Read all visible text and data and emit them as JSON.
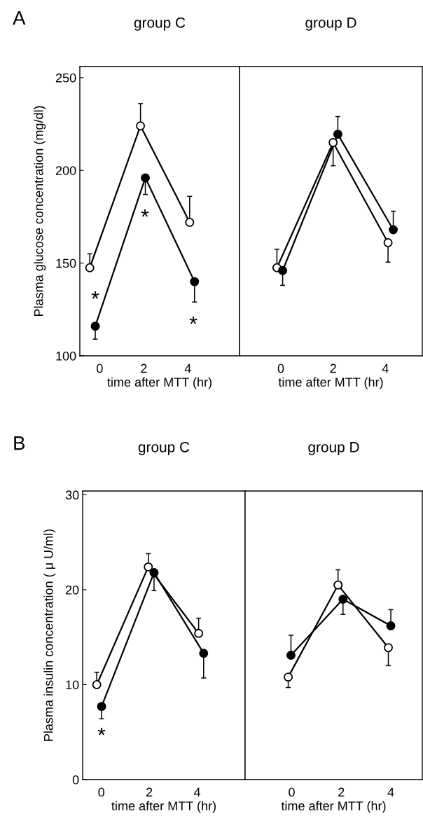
{
  "chart_data": [
    {
      "type": "line",
      "title": "group C",
      "ylabel": "Plasma glucose concentration (mg/dl)",
      "xlabel": "time after MTT (hr)",
      "xlim": [
        -0.9,
        6.34
      ],
      "xticks": [
        0,
        2,
        4
      ],
      "ylim": [
        100,
        256
      ],
      "yticks": [
        100,
        150,
        200,
        250
      ],
      "marker": "circle",
      "grid": false,
      "series": [
        {
          "color": "#000000",
          "colors": [
            "#ffffff",
            "#ffffff",
            "#ffffff"
          ],
          "x": [
            -0.45,
            1.85,
            4.08
          ],
          "values": [
            147.5,
            224,
            172
          ],
          "errors": [
            [
              147.5,
              155
            ],
            [
              224,
              236
            ],
            [
              172,
              186
            ]
          ]
        },
        {
          "color": "#000000",
          "colors": [
            "#000000",
            "#000000",
            "#000000"
          ],
          "x": [
            -0.2,
            2.07,
            4.3
          ],
          "values": [
            116,
            196,
            140
          ],
          "errors": [
            [
              109,
              116
            ],
            [
              187,
              196
            ],
            [
              129,
              140
            ]
          ]
        }
      ],
      "annotations": [
        "A",
        "*",
        "*",
        "*"
      ]
    },
    {
      "type": "line",
      "title": "group D",
      "xlabel": "time after MTT (hr)",
      "xlim": [
        -1.58,
        5.41
      ],
      "xticks": [
        0,
        2,
        4
      ],
      "ylim": [
        100,
        256
      ],
      "yticks": [
        100,
        150,
        200,
        250
      ],
      "tick_labels": "x",
      "marker": "circle",
      "grid": false,
      "series": [
        {
          "color": "#000000",
          "colors": [
            "#ffffff",
            "#ffffff",
            "#ffffff"
          ],
          "x": [
            -0.15,
            2.0,
            4.1
          ],
          "values": [
            147.5,
            215,
            161
          ],
          "errors": [
            [
              147.5,
              157.5
            ],
            [
              202.5,
              215
            ],
            [
              150.5,
              161
            ]
          ]
        },
        {
          "color": "#000000",
          "colors": [
            "#000000",
            "#000000",
            "#000000"
          ],
          "x": [
            0.07,
            2.18,
            4.3
          ],
          "values": [
            146,
            219.5,
            168
          ],
          "errors": [
            [
              138,
              146
            ],
            [
              219.5,
              229
            ],
            [
              168,
              178
            ]
          ]
        }
      ]
    },
    {
      "type": "line",
      "title": "group C",
      "ylabel": "Plasma insulin concentration ( μ U/ml)",
      "xlabel": "time after MTT (hr)",
      "xlim": [
        -0.78,
        6.0
      ],
      "xticks": [
        0,
        2,
        4
      ],
      "ylim": [
        0,
        30.4
      ],
      "yticks": [
        0,
        10,
        20,
        30
      ],
      "marker": "circle",
      "grid": false,
      "series": [
        {
          "color": "#000000",
          "colors": [
            "#ffffff",
            "#ffffff",
            "#ffffff"
          ],
          "x": [
            -0.19,
            1.96,
            4.06
          ],
          "values": [
            10.0,
            22.4,
            15.4
          ],
          "errors": [
            [
              10.0,
              11.3
            ],
            [
              22.4,
              23.8
            ],
            [
              15.4,
              17.0
            ]
          ]
        },
        {
          "color": "#000000",
          "colors": [
            "#000000",
            "#000000",
            "#000000"
          ],
          "x": [
            0.01,
            2.2,
            4.27
          ],
          "values": [
            7.7,
            21.8,
            13.3
          ],
          "errors": [
            [
              6.4,
              7.7
            ],
            [
              19.9,
              21.8
            ],
            [
              10.7,
              13.3
            ]
          ]
        }
      ],
      "annotations": [
        "B",
        "*"
      ]
    },
    {
      "type": "line",
      "title": "group D",
      "xlabel": "time after MTT (hr)",
      "xlim": [
        -1.88,
        5.27
      ],
      "xticks": [
        0,
        2,
        4
      ],
      "ylim": [
        0,
        30.4
      ],
      "yticks": [
        0,
        10,
        20,
        30
      ],
      "tick_labels": "x",
      "marker": "circle",
      "grid": false,
      "series": [
        {
          "color": "#000000",
          "colors": [
            "#ffffff",
            "#ffffff",
            "#ffffff"
          ],
          "x": [
            -0.14,
            1.87,
            3.9
          ],
          "values": [
            10.8,
            20.5,
            13.9
          ],
          "errors": [
            [
              9.7,
              10.8
            ],
            [
              20.5,
              22.1
            ],
            [
              12.0,
              13.9
            ]
          ]
        },
        {
          "color": "#000000",
          "colors": [
            "#000000",
            "#000000",
            "#000000"
          ],
          "x": [
            -0.03,
            2.07,
            4.0
          ],
          "values": [
            13.1,
            19.0,
            16.2
          ],
          "errors": [
            [
              13.1,
              15.2
            ],
            [
              17.4,
              19.0
            ],
            [
              16.2,
              17.9
            ]
          ]
        }
      ]
    }
  ]
}
